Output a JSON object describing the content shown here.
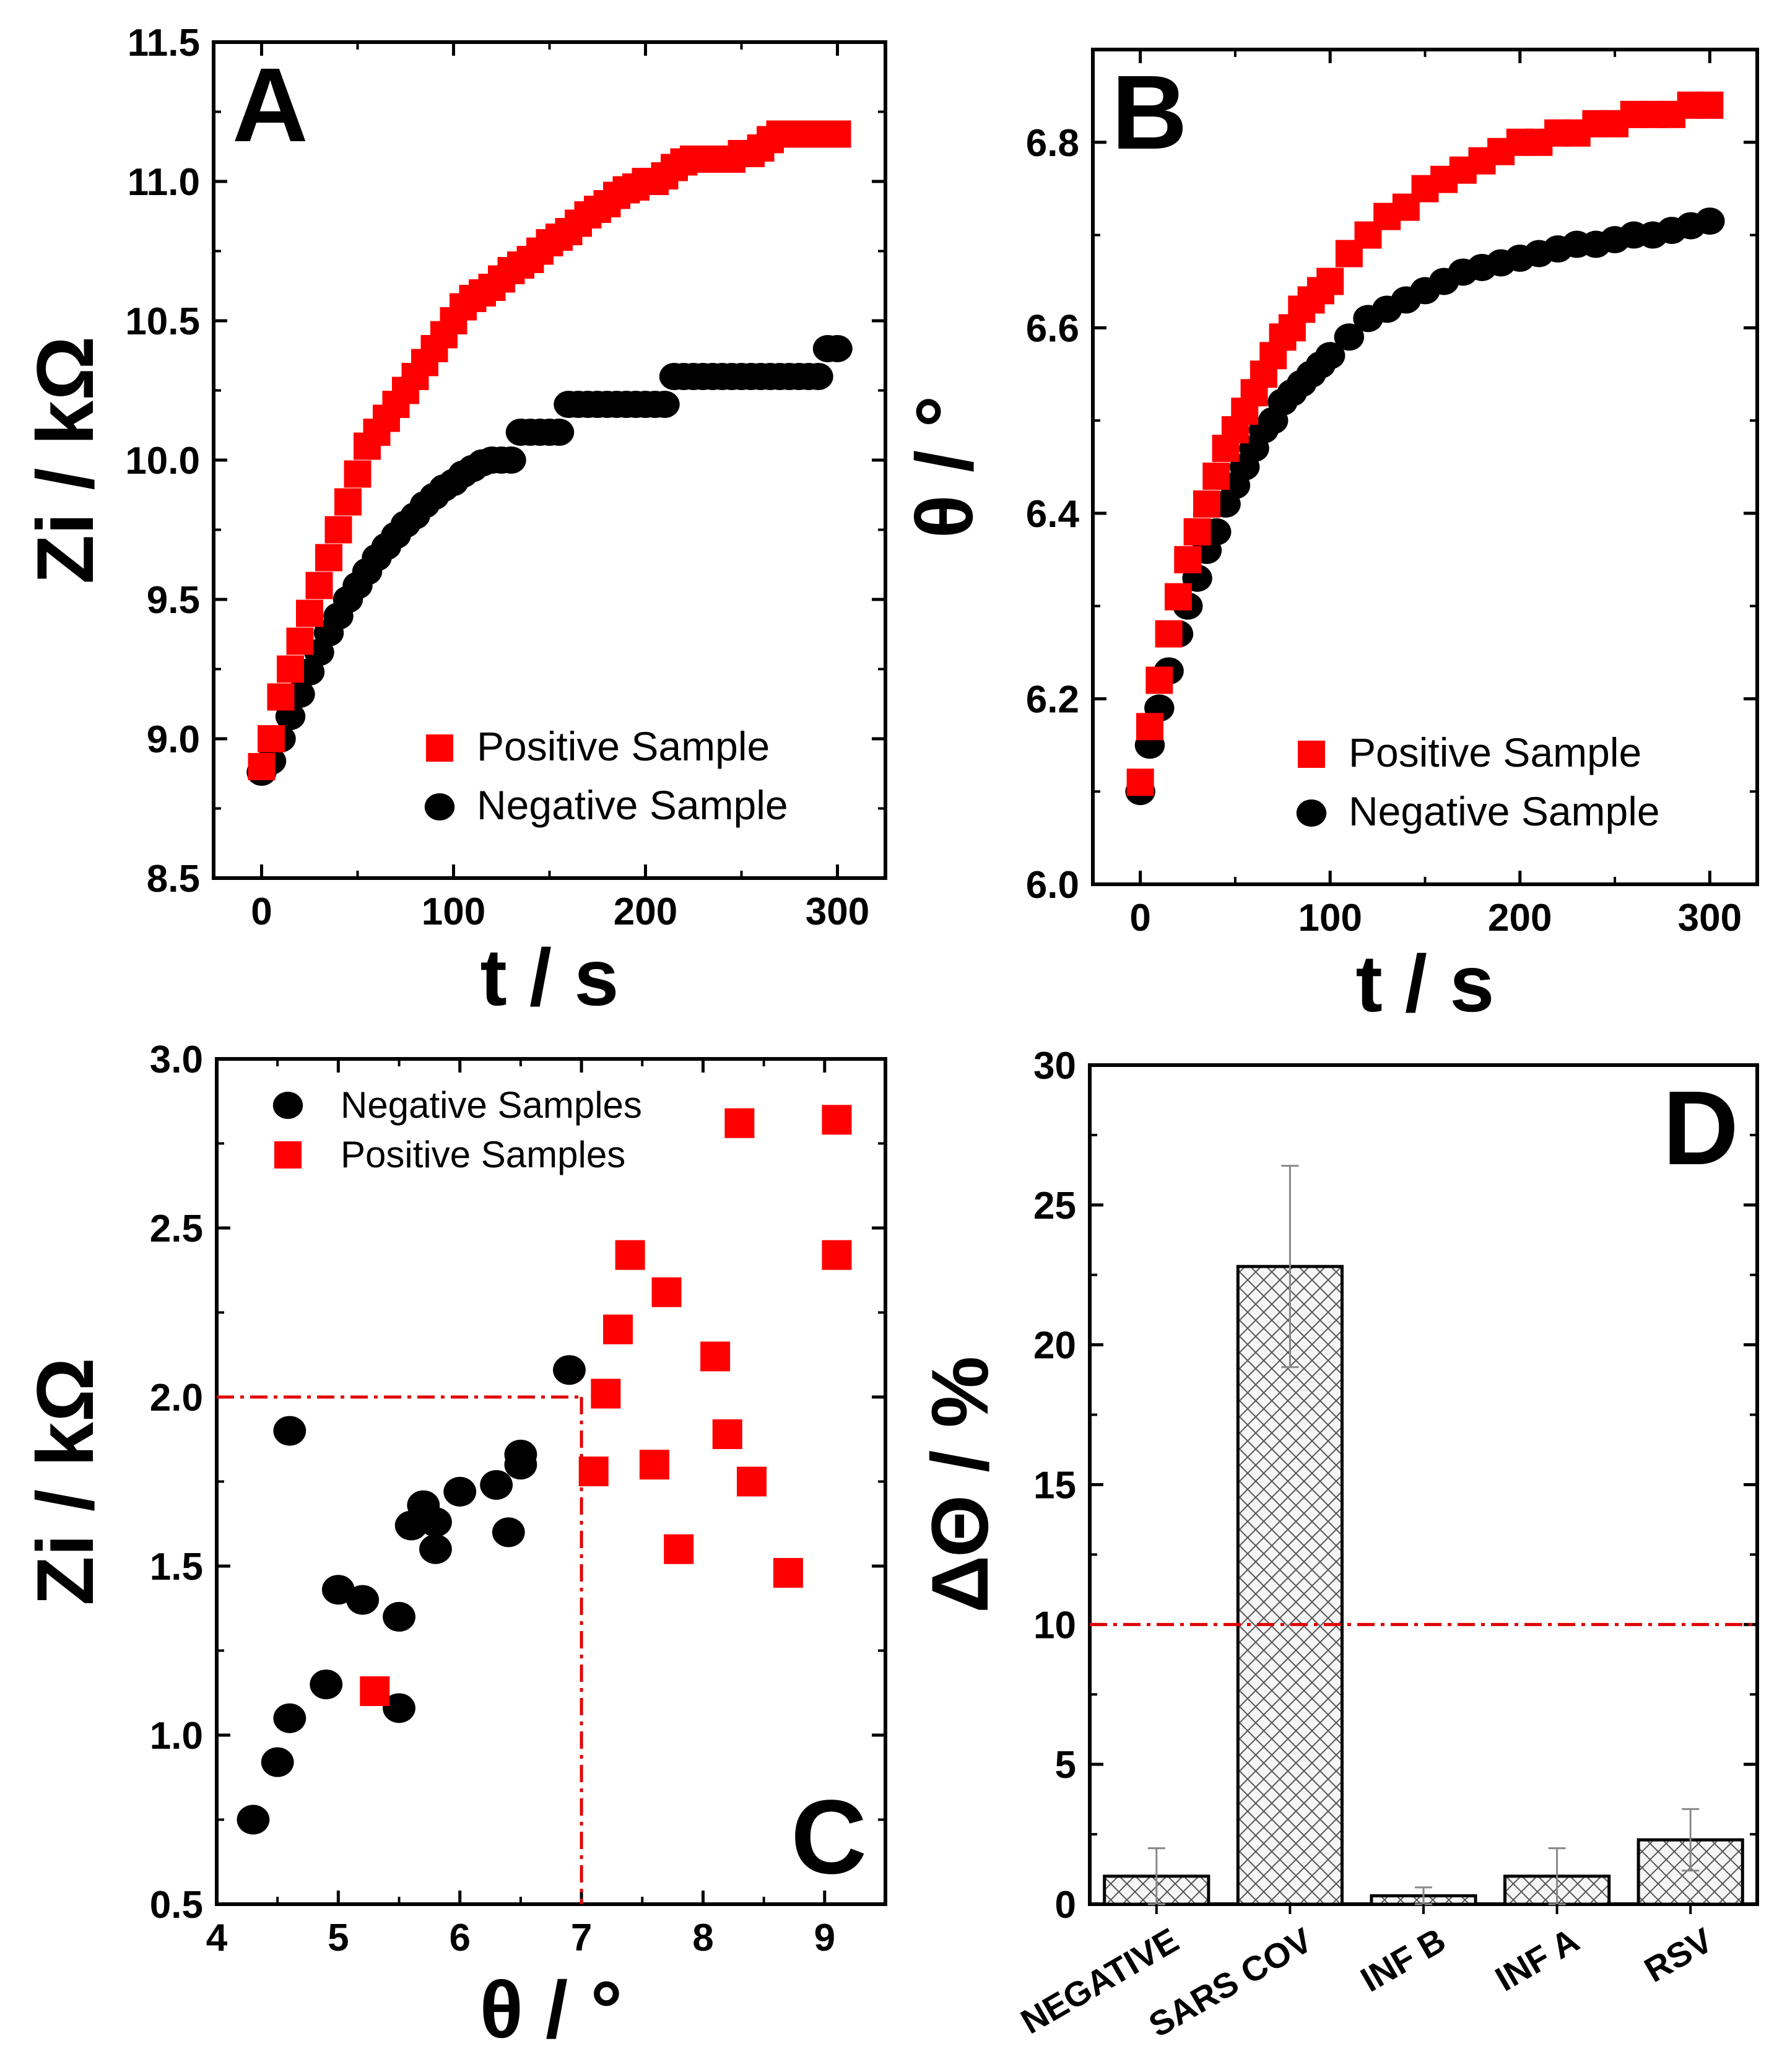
{
  "colors": {
    "positive": "#ff0000",
    "negative": "#000000",
    "threshold": "#e00000",
    "axis": "#000000",
    "bar_fill": "#f4f4f4"
  },
  "chart_data": [
    {
      "panel": "A",
      "type": "scatter",
      "xlabel": "t / s",
      "ylabel": "Zi / kΩ",
      "xlim": [
        -25,
        325
      ],
      "ylim": [
        8.5,
        11.5
      ],
      "xticks": [
        "0",
        "100",
        "200",
        "300"
      ],
      "yticks": [
        "8.5",
        "9.0",
        "9.5",
        "10.0",
        "10.5",
        "11.0",
        "11.5"
      ],
      "legend_position": "bottom-right",
      "series": [
        {
          "name": "Positive Sample",
          "marker": "square",
          "color": "#ff0000",
          "x": [
            0,
            5,
            10,
            15,
            20,
            25,
            30,
            35,
            40,
            45,
            50,
            55,
            60,
            65,
            70,
            75,
            80,
            85,
            90,
            95,
            100,
            105,
            110,
            115,
            120,
            125,
            130,
            135,
            140,
            145,
            150,
            155,
            160,
            165,
            170,
            175,
            180,
            185,
            190,
            195,
            200,
            205,
            210,
            215,
            220,
            225,
            230,
            235,
            240,
            245,
            250,
            255,
            260,
            265,
            270,
            275,
            280,
            285,
            290,
            295,
            300
          ],
          "values": [
            8.9,
            9.0,
            9.15,
            9.25,
            9.35,
            9.45,
            9.55,
            9.65,
            9.75,
            9.85,
            9.95,
            10.05,
            10.1,
            10.15,
            10.2,
            10.25,
            10.3,
            10.35,
            10.4,
            10.45,
            10.5,
            10.55,
            10.58,
            10.6,
            10.62,
            10.65,
            10.68,
            10.7,
            10.72,
            10.75,
            10.78,
            10.8,
            10.82,
            10.85,
            10.88,
            10.9,
            10.92,
            10.95,
            10.97,
            10.98,
            11.0,
            11.0,
            11.02,
            11.05,
            11.07,
            11.08,
            11.08,
            11.08,
            11.08,
            11.08,
            11.1,
            11.1,
            11.12,
            11.15,
            11.17,
            11.17,
            11.17,
            11.17,
            11.17,
            11.17,
            11.17
          ]
        },
        {
          "name": "Negative Sample",
          "marker": "circle",
          "color": "#000000",
          "x": [
            0,
            5,
            10,
            15,
            20,
            25,
            30,
            35,
            40,
            45,
            50,
            55,
            60,
            65,
            70,
            75,
            80,
            85,
            90,
            95,
            100,
            105,
            110,
            115,
            120,
            125,
            130,
            135,
            140,
            145,
            150,
            155,
            160,
            165,
            170,
            175,
            180,
            185,
            190,
            195,
            200,
            205,
            210,
            215,
            220,
            225,
            230,
            235,
            240,
            245,
            250,
            255,
            260,
            265,
            270,
            275,
            280,
            285,
            290,
            295,
            300
          ],
          "values": [
            8.88,
            8.92,
            9.0,
            9.08,
            9.16,
            9.24,
            9.31,
            9.38,
            9.44,
            9.5,
            9.55,
            9.6,
            9.65,
            9.69,
            9.73,
            9.77,
            9.8,
            9.84,
            9.87,
            9.9,
            9.92,
            9.95,
            9.97,
            9.99,
            10.0,
            10.0,
            10.0,
            10.1,
            10.1,
            10.1,
            10.1,
            10.1,
            10.2,
            10.2,
            10.2,
            10.2,
            10.2,
            10.2,
            10.2,
            10.2,
            10.2,
            10.2,
            10.2,
            10.3,
            10.3,
            10.3,
            10.3,
            10.3,
            10.3,
            10.3,
            10.3,
            10.3,
            10.3,
            10.3,
            10.3,
            10.3,
            10.3,
            10.3,
            10.3,
            10.4,
            10.4
          ]
        }
      ]
    },
    {
      "panel": "B",
      "type": "scatter",
      "xlabel": "t / s",
      "ylabel": "θ / °",
      "xlim": [
        -25,
        325
      ],
      "ylim": [
        6.0,
        6.9
      ],
      "xticks": [
        "0",
        "100",
        "200",
        "300"
      ],
      "yticks": [
        "6.0",
        "6.2",
        "6.4",
        "6.6",
        "6.8"
      ],
      "legend_position": "bottom-right",
      "series": [
        {
          "name": "Positive Sample",
          "marker": "square",
          "color": "#ff0000",
          "x": [
            0,
            5,
            10,
            15,
            20,
            25,
            30,
            35,
            40,
            45,
            50,
            55,
            60,
            65,
            70,
            75,
            80,
            85,
            90,
            95,
            100,
            110,
            120,
            130,
            140,
            150,
            160,
            170,
            180,
            190,
            200,
            210,
            220,
            230,
            240,
            250,
            260,
            270,
            280,
            290,
            300
          ],
          "values": [
            6.11,
            6.17,
            6.22,
            6.27,
            6.31,
            6.35,
            6.38,
            6.41,
            6.44,
            6.47,
            6.49,
            6.51,
            6.53,
            6.55,
            6.57,
            6.59,
            6.6,
            6.62,
            6.63,
            6.64,
            6.65,
            6.68,
            6.7,
            6.72,
            6.73,
            6.75,
            6.76,
            6.77,
            6.78,
            6.79,
            6.8,
            6.8,
            6.81,
            6.81,
            6.82,
            6.82,
            6.83,
            6.83,
            6.83,
            6.84,
            6.84
          ]
        },
        {
          "name": "Negative Sample",
          "marker": "circle",
          "color": "#000000",
          "x": [
            0,
            5,
            10,
            15,
            20,
            25,
            30,
            35,
            40,
            45,
            50,
            55,
            60,
            65,
            70,
            75,
            80,
            85,
            90,
            95,
            100,
            110,
            120,
            130,
            140,
            150,
            160,
            170,
            180,
            190,
            200,
            210,
            220,
            230,
            240,
            250,
            260,
            270,
            280,
            290,
            300
          ],
          "values": [
            6.1,
            6.15,
            6.19,
            6.23,
            6.27,
            6.3,
            6.33,
            6.36,
            6.38,
            6.41,
            6.43,
            6.45,
            6.47,
            6.49,
            6.5,
            6.52,
            6.53,
            6.54,
            6.55,
            6.56,
            6.57,
            6.59,
            6.61,
            6.62,
            6.63,
            6.64,
            6.65,
            6.66,
            6.665,
            6.67,
            6.675,
            6.68,
            6.685,
            6.69,
            6.69,
            6.695,
            6.7,
            6.7,
            6.705,
            6.71,
            6.715
          ]
        }
      ]
    },
    {
      "panel": "C",
      "type": "scatter",
      "xlabel": "θ / °",
      "ylabel": "Zi / kΩ",
      "xlim": [
        4,
        9.5
      ],
      "ylim": [
        0.5,
        3.0
      ],
      "xticks": [
        "4",
        "5",
        "6",
        "7",
        "8",
        "9"
      ],
      "yticks": [
        "0.5",
        "1.0",
        "1.5",
        "2.0",
        "2.5",
        "3.0"
      ],
      "legend_position": "top-left",
      "thresholds": {
        "x": 7.0,
        "y": 2.0
      },
      "series": [
        {
          "name": "Negative Samples",
          "marker": "circle",
          "color": "#000000",
          "x": [
            4.3,
            4.5,
            4.6,
            4.6,
            4.9,
            5.0,
            5.2,
            5.5,
            5.5,
            5.6,
            5.7,
            5.8,
            5.8,
            6.0,
            6.3,
            6.4,
            6.5,
            6.5,
            6.9
          ],
          "y": [
            0.75,
            0.92,
            1.05,
            1.9,
            1.15,
            1.43,
            1.4,
            1.35,
            1.08,
            1.62,
            1.68,
            1.63,
            1.55,
            1.72,
            1.74,
            1.6,
            1.8,
            1.83,
            2.08
          ]
        },
        {
          "name": "Positive Samples",
          "marker": "square",
          "color": "#ff0000",
          "x": [
            5.3,
            7.1,
            7.2,
            7.3,
            7.4,
            7.6,
            7.7,
            7.8,
            8.1,
            8.2,
            8.3,
            8.4,
            8.7,
            9.1,
            9.1
          ],
          "y": [
            1.13,
            1.78,
            2.01,
            2.2,
            2.42,
            1.8,
            2.31,
            1.55,
            2.12,
            1.89,
            2.81,
            1.75,
            1.48,
            2.82,
            2.42
          ]
        }
      ]
    },
    {
      "panel": "D",
      "type": "bar",
      "ylabel": "ΔΘ / %",
      "ylim": [
        0,
        30
      ],
      "yticks": [
        "0",
        "5",
        "10",
        "15",
        "20",
        "25",
        "30"
      ],
      "threshold": 10,
      "categories": [
        "NEGATIVE",
        "SARS COV",
        "INF B",
        "INF A",
        "RSV"
      ],
      "values": [
        1.0,
        22.8,
        0.3,
        1.0,
        2.3
      ],
      "errors": [
        1.0,
        3.6,
        0.3,
        1.0,
        1.1
      ]
    }
  ]
}
